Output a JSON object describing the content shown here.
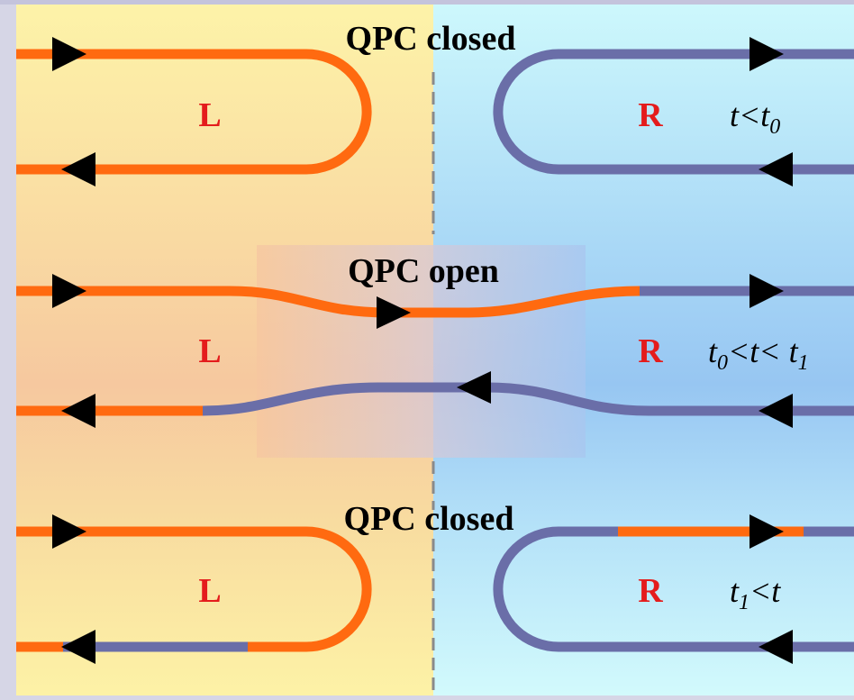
{
  "panels": [
    {
      "title": "QPC closed",
      "left_label": "L",
      "right_label": "R",
      "time_condition": {
        "base": "t<t",
        "sub": "0",
        "sub2": "",
        "tail": ""
      }
    },
    {
      "title": "QPC open",
      "left_label": "L",
      "right_label": "R",
      "time_condition": {
        "base": "t",
        "sub": "0",
        "mid": "<t< t",
        "sub2": "1"
      }
    },
    {
      "title": "QPC closed",
      "left_label": "L",
      "right_label": "R",
      "time_condition": {
        "base": "t",
        "sub": "1",
        "tail": "<t"
      }
    }
  ],
  "colors": {
    "left_region_top": "#fdf3a8",
    "left_region_mid": "#f7c9a0",
    "right_region_top": "#cdf7fb",
    "right_region_mid": "#9ccaf3",
    "edge_orange": "#ff6a10",
    "edge_purple": "#6a6ea8",
    "arrow": "#000000",
    "region_label": "#e41c1c",
    "divider": "#8a8a8a",
    "frame": "#d6d6e6"
  }
}
